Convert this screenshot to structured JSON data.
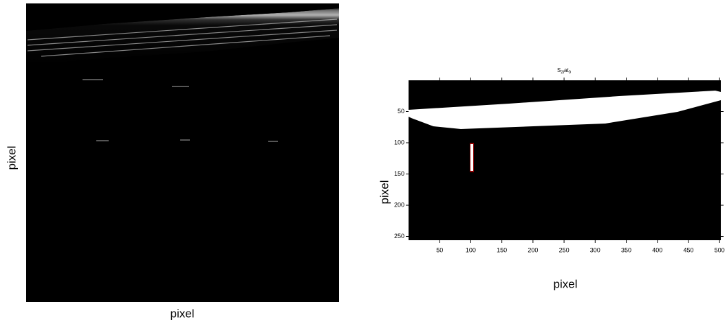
{
  "left_panel": {
    "xlabel": "pixel",
    "ylabel": "pixel"
  },
  "right_panel": {
    "title_parts": [
      "S",
      "2i",
      "at",
      "0"
    ],
    "xlabel": "pixel",
    "ylabel": "pixel",
    "xlim": [
      0,
      502
    ],
    "ylim": [
      0,
      256
    ],
    "xticks": [
      50,
      100,
      150,
      200,
      250,
      300,
      350,
      400,
      450,
      500
    ],
    "yticks": [
      50,
      100,
      150,
      200,
      250
    ]
  }
}
